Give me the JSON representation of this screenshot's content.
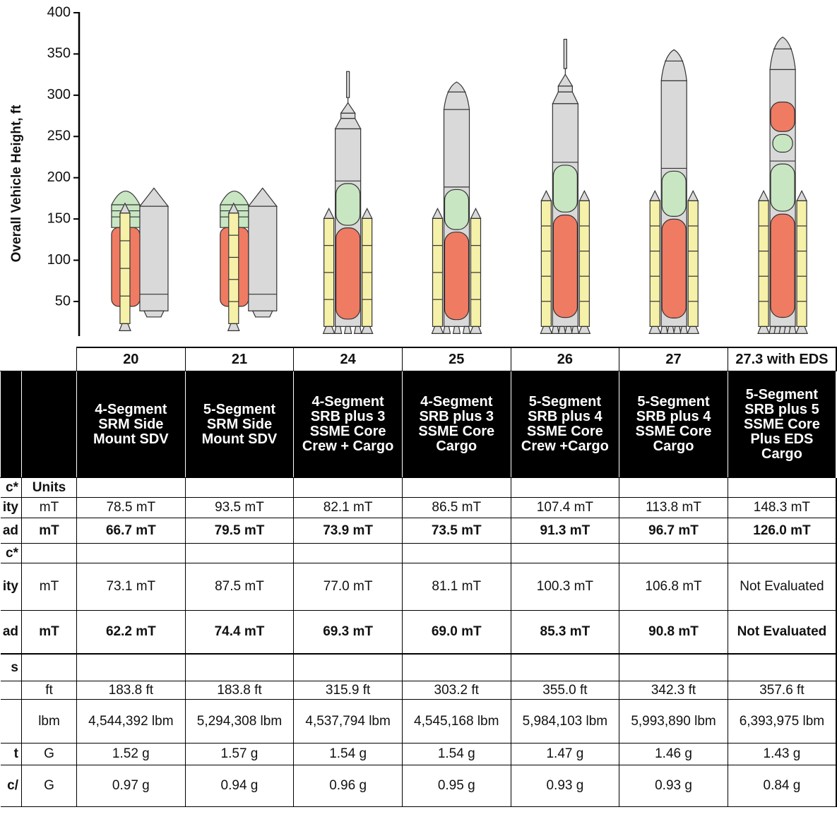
{
  "axis": {
    "label": "Overall Vehicle Height, ft",
    "ylim": [
      0,
      400
    ],
    "yticks": [
      50,
      100,
      150,
      200,
      250,
      300,
      350,
      400
    ]
  },
  "table": {
    "config_numbers": [
      "20",
      "21",
      "24",
      "25",
      "26",
      "27",
      "27.3 with EDS"
    ],
    "descriptions": [
      [
        "4-Segment",
        "SRM Side",
        "Mount SDV"
      ],
      [
        "5-Segment",
        "SRM Side",
        "Mount SDV"
      ],
      [
        "4-Segment",
        "SRB plus 3",
        "SSME Core",
        "Crew + Cargo"
      ],
      [
        "4-Segment",
        "SRB plus 3",
        "SSME Core",
        "Cargo"
      ],
      [
        "5-Segment",
        "SRB plus 4",
        "SSME Core",
        "Crew +Cargo"
      ],
      [
        "5-Segment",
        "SRB plus 4",
        "SSME Core",
        "Cargo"
      ],
      [
        "5-Segment",
        "SRB plus 5",
        "SSME Core",
        "Plus EDS",
        "Cargo"
      ]
    ],
    "rows": [
      [
        "c*",
        "Units"
      ],
      [
        "ity",
        "mT",
        "78.5 mT",
        "93.5 mT",
        "82.1 mT",
        "86.5 mT",
        "107.4 mT",
        "113.8 mT",
        "148.3 mT"
      ],
      [
        "ad",
        "mT",
        "66.7 mT",
        "79.5 mT",
        "73.9 mT",
        "73.5 mT",
        "91.3 mT",
        "96.7 mT",
        "126.0 mT"
      ],
      [
        "c*"
      ],
      [
        "ity",
        "mT",
        "73.1 mT",
        "87.5 mT",
        "77.0 mT",
        "81.1 mT",
        "100.3 mT",
        "106.8 mT",
        "Not Evaluated"
      ],
      [
        "ad",
        "mT",
        "62.2 mT",
        "74.4 mT",
        "69.3 mT",
        "69.0 mT",
        "85.3 mT",
        "90.8 mT",
        "Not Evaluated"
      ],
      [
        "s"
      ],
      [
        null,
        "ft",
        {
          "value": 183.8,
          "label": "183.8 ft"
        },
        {
          "value": 183.8,
          "label": "183.8 ft"
        },
        {
          "value": 315.9,
          "label": "315.9 ft"
        },
        {
          "value": 303.2,
          "label": "303.2 ft"
        },
        {
          "value": 355.0,
          "label": "355.0 ft"
        },
        {
          "value": 342.3,
          "label": "342.3 ft"
        },
        {
          "value": 357.6,
          "label": "357.6 ft"
        }
      ],
      [
        null,
        "lbm",
        "4,544,392 lbm",
        "5,294,308 lbm",
        "4,537,794 lbm",
        "4,545,168 lbm",
        "5,984,103 lbm",
        "5,993,890 lbm",
        "6,393,975 lbm"
      ],
      [
        "t",
        "G",
        "1.52 g",
        "1.57 g",
        "1.54 g",
        "1.54 g",
        "1.47 g",
        "1.46 g",
        "1.43 g"
      ],
      [
        "c/",
        "G",
        "0.97 g",
        "0.94 g",
        "0.96 g",
        "0.95 g",
        "0.93 g",
        "0.93 g",
        "0.84 g"
      ]
    ]
  }
}
